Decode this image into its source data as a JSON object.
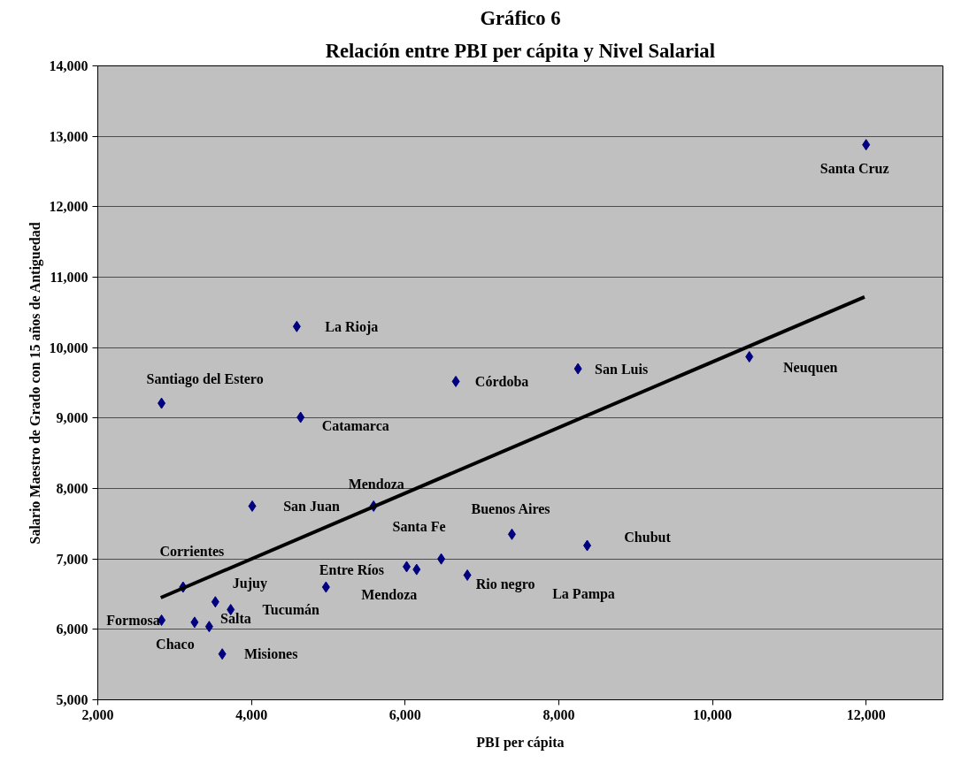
{
  "chart_data": {
    "type": "scatter",
    "title": "Gráfico 6",
    "subtitle": "Relación entre PBI per cápita y Nivel Salarial",
    "xlabel": "PBI per cápita",
    "ylabel": "Salario Maestro de Grado con 15 años de Antiguedad",
    "xlim": [
      2000,
      13000
    ],
    "xticks": [
      {
        "value": 2000,
        "label": "2,000"
      },
      {
        "value": 4000,
        "label": "4,000"
      },
      {
        "value": 6000,
        "label": "6,000"
      },
      {
        "value": 8000,
        "label": "8,000"
      },
      {
        "value": 10000,
        "label": "10,000"
      },
      {
        "value": 12000,
        "label": "12,000"
      }
    ],
    "ylim": [
      5000,
      14000
    ],
    "yticks": [
      {
        "value": 5000,
        "label": "5,000"
      },
      {
        "value": 6000,
        "label": "6,000"
      },
      {
        "value": 7000,
        "label": "7,000"
      },
      {
        "value": 8000,
        "label": "8,000"
      },
      {
        "value": 9000,
        "label": "9,000"
      },
      {
        "value": 10000,
        "label": "10,000"
      },
      {
        "value": 11000,
        "label": "11,000"
      },
      {
        "value": 12000,
        "label": "12,000"
      },
      {
        "value": 13000,
        "label": "13,000"
      },
      {
        "value": 14000,
        "label": "14,000"
      }
    ],
    "grid": "y",
    "series": [
      {
        "color": "#000080",
        "marker": "diamond",
        "x": [
          12000,
          4590,
          2830,
          4640,
          6660,
          8250,
          10480,
          4010,
          5590,
          7390,
          6470,
          6020,
          6150,
          6810,
          4970,
          3110,
          3530,
          3730,
          2830,
          3260,
          3450,
          3620,
          8370
        ],
        "values": [
          12880,
          10300,
          9210,
          9010,
          9520,
          9700,
          9870,
          7750,
          7750,
          7350,
          7000,
          6890,
          6850,
          6770,
          6600,
          6600,
          6390,
          6280,
          6130,
          6100,
          6040,
          5650,
          7190
        ]
      },
      {
        "type": "line",
        "color": "#000000",
        "line_style": "solid",
        "x": [
          2820,
          11980
        ],
        "values": [
          6450,
          10720
        ]
      }
    ],
    "annotations": [
      {
        "text": "Santa Cruz",
        "x": 12000,
        "y": 12880
      },
      {
        "text": "La Rioja",
        "x": 4590,
        "y": 10300
      },
      {
        "text": "Santiago del Estero",
        "x": 2830,
        "y": 9210
      },
      {
        "text": "Catamarca",
        "x": 4640,
        "y": 9010
      },
      {
        "text": "Córdoba",
        "x": 6660,
        "y": 9520
      },
      {
        "text": "San Luis",
        "x": 8250,
        "y": 9700
      },
      {
        "text": "Neuquen",
        "x": 10480,
        "y": 9870
      },
      {
        "text": "Mendoza",
        "x": 5590,
        "y": 7750
      },
      {
        "text": "San Juan",
        "x": 4010,
        "y": 7750
      },
      {
        "text": "Buenos Aires",
        "x": 7390,
        "y": 7350
      },
      {
        "text": "Santa  Fe",
        "x": 6470,
        "y": 7000
      },
      {
        "text": "Chubut",
        "x": 8370,
        "y": 7190
      },
      {
        "text": "Corrientes",
        "x": 3110,
        "y": 6600
      },
      {
        "text": "Entre Ríos",
        "x": 4970,
        "y": 6600
      },
      {
        "text": "La Pampa",
        "x": 8370,
        "y": 7190
      },
      {
        "text": "Jujuy",
        "x": 3530,
        "y": 6390
      },
      {
        "text": "Mendoza",
        "x": 6150,
        "y": 6850
      },
      {
        "text": "Rio negro",
        "x": 6810,
        "y": 6770
      },
      {
        "text": "Tucumán",
        "x": 3730,
        "y": 6280
      },
      {
        "text": "Formosa",
        "x": 2830,
        "y": 6130
      },
      {
        "text": "Salta",
        "x": 3450,
        "y": 6040
      },
      {
        "text": "Chaco",
        "x": 3260,
        "y": 6100
      },
      {
        "text": "Misiones",
        "x": 3620,
        "y": 5650
      }
    ]
  }
}
